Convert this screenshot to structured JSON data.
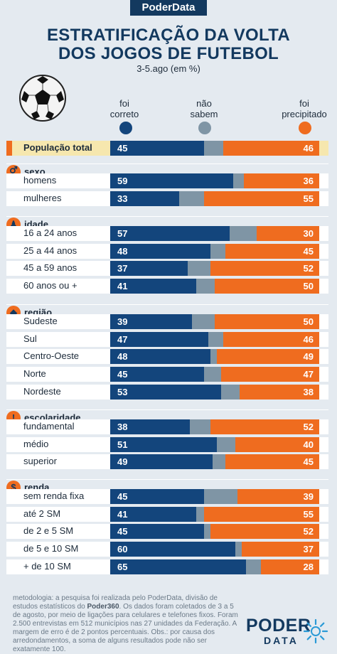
{
  "brand": "PoderData",
  "title_line1": "ESTRATIFICAÇÃO DA VOLTA",
  "title_line2": "DOS JOGOS DE FUTEBOL",
  "subtitle": "3-5.ago (em %)",
  "legend": {
    "correct_line1": "foi",
    "correct_line2": "correto",
    "unknown_line1": "não",
    "unknown_line2": "sabem",
    "hasty_line1": "foi",
    "hasty_line2": "precipitado"
  },
  "colors": {
    "correct": "#13457c",
    "unknown": "#7f95a5",
    "hasty": "#ef6c1f",
    "background": "#e4eaf0",
    "highlight": "#f6e7ae"
  },
  "icons": [
    "soccer-ball-icon",
    "gender-icon",
    "person-icon",
    "brazil-map-icon",
    "exclamation-icon",
    "dollar-icon"
  ],
  "chart_data": {
    "type": "bar",
    "stacked": true,
    "series_names": [
      "foi correto",
      "não sabem",
      "foi precipitado"
    ],
    "rows": [
      {
        "section": "",
        "label": "População total",
        "correct": 45,
        "hasty": 46,
        "highlight": true
      },
      {
        "section": "sexo",
        "label": "homens",
        "correct": 59,
        "hasty": 36
      },
      {
        "section": "sexo",
        "label": "mulheres",
        "correct": 33,
        "hasty": 55
      },
      {
        "section": "idade",
        "label": "16 a 24 anos",
        "correct": 57,
        "hasty": 30
      },
      {
        "section": "idade",
        "label": "25 a 44 anos",
        "correct": 48,
        "hasty": 45
      },
      {
        "section": "idade",
        "label": "45 a 59 anos",
        "correct": 37,
        "hasty": 52
      },
      {
        "section": "idade",
        "label": "60 anos ou +",
        "correct": 41,
        "hasty": 50
      },
      {
        "section": "região",
        "label": "Sudeste",
        "correct": 39,
        "hasty": 50
      },
      {
        "section": "região",
        "label": "Sul",
        "correct": 47,
        "hasty": 46
      },
      {
        "section": "região",
        "label": "Centro-Oeste",
        "correct": 48,
        "hasty": 49
      },
      {
        "section": "região",
        "label": "Norte",
        "correct": 45,
        "hasty": 47
      },
      {
        "section": "região",
        "label": "Nordeste",
        "correct": 53,
        "hasty": 38
      },
      {
        "section": "escolaridade",
        "label": "fundamental",
        "correct": 38,
        "hasty": 52
      },
      {
        "section": "escolaridade",
        "label": "médio",
        "correct": 51,
        "hasty": 40
      },
      {
        "section": "escolaridade",
        "label": "superior",
        "correct": 49,
        "hasty": 45
      },
      {
        "section": "renda",
        "label": "sem renda fixa",
        "correct": 45,
        "hasty": 39
      },
      {
        "section": "renda",
        "label": "até 2 SM",
        "correct": 41,
        "hasty": 55
      },
      {
        "section": "renda",
        "label": "de 2 e 5 SM",
        "correct": 45,
        "hasty": 52
      },
      {
        "section": "renda",
        "label": "de 5 e 10 SM",
        "correct": 60,
        "hasty": 37
      },
      {
        "section": "renda",
        "label": "+ de 10 SM",
        "correct": 65,
        "hasty": 28
      }
    ],
    "sections": [
      {
        "name": "sexo",
        "icon": "gender-icon",
        "glyph": "⚥"
      },
      {
        "name": "idade",
        "icon": "person-icon",
        "glyph": "♟"
      },
      {
        "name": "região",
        "icon": "brazil-map-icon",
        "glyph": "◆"
      },
      {
        "name": "escolaridade",
        "icon": "exclamation-icon",
        "glyph": "!"
      },
      {
        "name": "renda",
        "icon": "dollar-icon",
        "glyph": "$"
      }
    ],
    "xlim": [
      0,
      100
    ]
  },
  "footnote": {
    "part1": "metodologia: a pesquisa foi realizada pelo PoderData, divisão de estudos estatísticos do ",
    "bold": "Poder360",
    "part2": ". Os dados foram coletados de 3 a 5 de agosto, por meio de ligações para celulares e telefones fixos. Foram 2.500 entrevistas em 512 municípios nas 27 unidades da Federação. A margem de erro é de 2 pontos percentuais. Obs.: por causa dos arredondamentos, a soma de alguns resultados pode não ser exatamente 100."
  },
  "logo": {
    "line1": "PODER",
    "line2": "DATA"
  }
}
